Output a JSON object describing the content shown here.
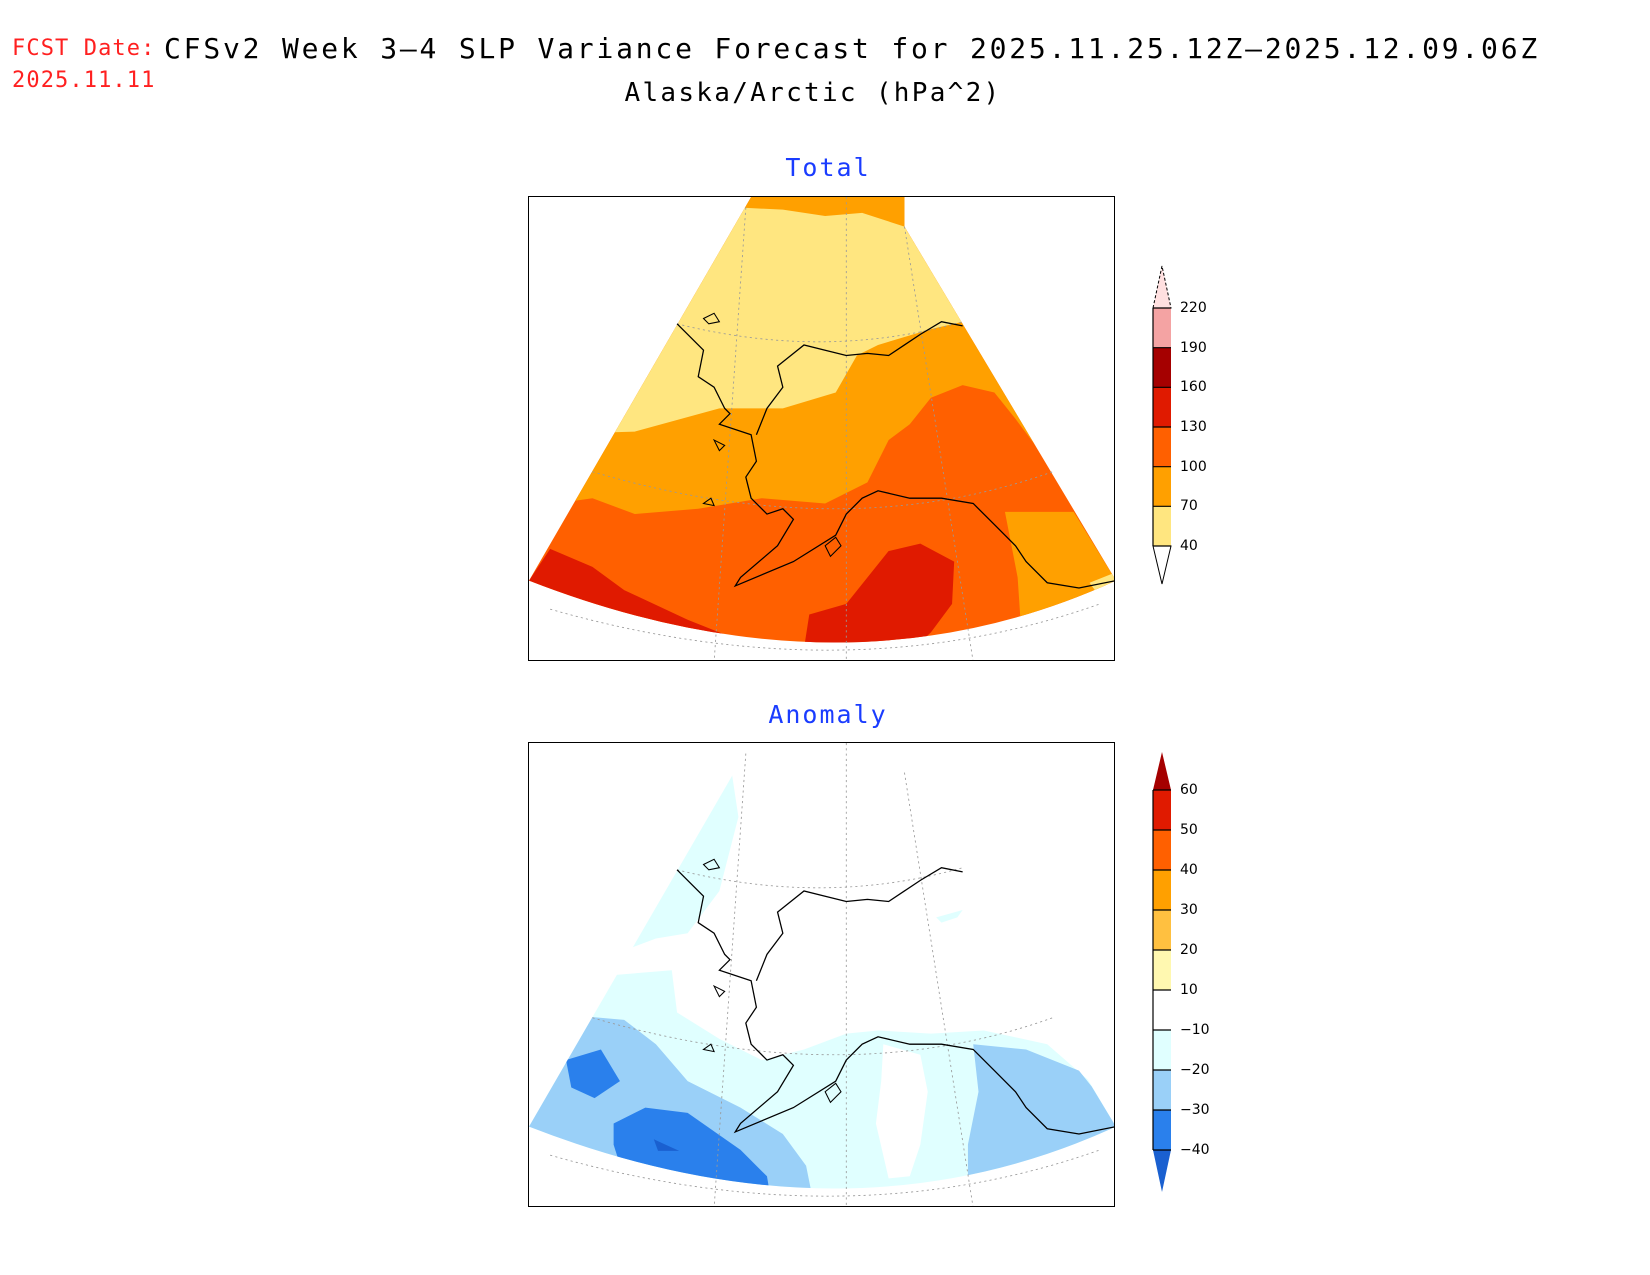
{
  "header": {
    "fcst_label": "FCST Date:",
    "fcst_date": "2025.11.11",
    "title": "CFSv2 Week 3–4 SLP Variance Forecast for 2025.11.25.12Z–2025.12.09.06Z",
    "subtitle": "Alaska/Arctic (hPa^2)"
  },
  "panels": {
    "total": {
      "title": "Total",
      "legend": {
        "levels": [
          "40",
          "70",
          "100",
          "130",
          "160",
          "190",
          "220"
        ],
        "colors": [
          "#ffe680",
          "#ffa000",
          "#ff6000",
          "#e01a00",
          "#a50000",
          "#f4a3a3"
        ],
        "below_color": "#ffffff",
        "above_color": "#ffe0e0"
      }
    },
    "anomaly": {
      "title": "Anomaly",
      "legend": {
        "levels": [
          "−40",
          "−30",
          "−20",
          "−10",
          "10",
          "20",
          "30",
          "40",
          "50",
          "60"
        ],
        "colors": [
          "#2a80ec",
          "#9ad0f8",
          "#e0ffff",
          "#ffffff",
          "#fff8b0",
          "#ffc040",
          "#ffa000",
          "#ff6000",
          "#e01a00"
        ],
        "below_color": "#1a60d0",
        "above_color": "#a50000"
      }
    }
  }
}
